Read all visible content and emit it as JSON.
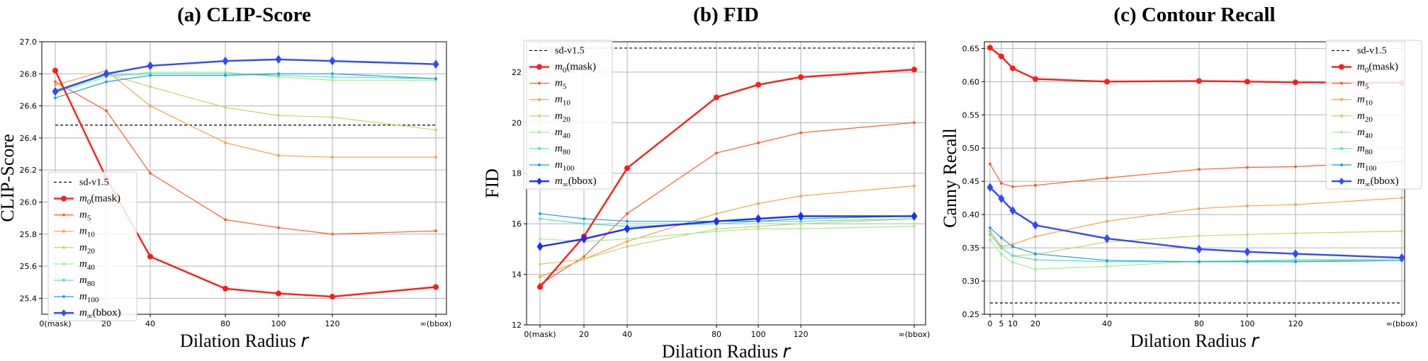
{
  "chart_data": [
    {
      "type": "line",
      "title": "(a)  CLIP-Score",
      "xlabel": "Dilation Radius",
      "xlabel_var": "r",
      "ylabel": "CLIP-Score",
      "x_categories": [
        "0(mask)",
        "20",
        "40",
        "80",
        "100",
        "120",
        "∞(bbox)"
      ],
      "ylim": [
        25.3,
        27.0
      ],
      "yticks": [
        25.4,
        25.6,
        25.8,
        26.0,
        26.2,
        26.4,
        26.6,
        26.8,
        27.0
      ],
      "grid": true,
      "legend_position": "lower-left",
      "baseline": {
        "name": "sd-v1.5",
        "value": 26.48
      },
      "series": [
        {
          "name": "m0(mask)",
          "base": "m",
          "sub": "0",
          "suffix": "(mask)",
          "color": "#ff1a1a",
          "marker": "o",
          "bold": true,
          "values": [
            26.82,
            26.15,
            25.66,
            25.46,
            25.43,
            25.41,
            25.47
          ]
        },
        {
          "name": "m5",
          "base": "m",
          "sub": "5",
          "suffix": "",
          "color": "#f75e2e",
          "marker": "o",
          "bold": false,
          "values": [
            26.75,
            26.57,
            26.18,
            25.89,
            25.84,
            25.8,
            25.82
          ]
        },
        {
          "name": "m10",
          "base": "m",
          "sub": "10",
          "suffix": "",
          "color": "#f6a04a",
          "marker": "o",
          "bold": false,
          "values": [
            26.73,
            26.82,
            26.6,
            26.37,
            26.29,
            26.28,
            26.28
          ]
        },
        {
          "name": "m20",
          "base": "m",
          "sub": "20",
          "suffix": "",
          "color": "#c6d46a",
          "marker": "o",
          "bold": false,
          "values": [
            26.7,
            26.8,
            26.72,
            26.59,
            26.54,
            26.53,
            26.45
          ]
        },
        {
          "name": "m40",
          "base": "m",
          "sub": "40",
          "suffix": "",
          "color": "#9af08a",
          "marker": "o",
          "bold": false,
          "values": [
            26.68,
            26.78,
            26.81,
            26.81,
            26.78,
            26.76,
            26.76
          ]
        },
        {
          "name": "m80",
          "base": "m",
          "sub": "80",
          "suffix": "",
          "color": "#4fe2b6",
          "marker": "o",
          "bold": false,
          "values": [
            26.69,
            26.79,
            26.8,
            26.8,
            26.79,
            26.78,
            26.77
          ]
        },
        {
          "name": "m100",
          "base": "m",
          "sub": "100",
          "suffix": "",
          "color": "#1f9ee8",
          "marker": "o",
          "bold": false,
          "values": [
            26.65,
            26.75,
            26.79,
            26.79,
            26.8,
            26.8,
            26.77
          ]
        },
        {
          "name": "m∞(bbox)",
          "base": "m",
          "sub": "∞",
          "suffix": "(bbox)",
          "color": "#3347ff",
          "marker": "d",
          "bold": true,
          "values": [
            26.69,
            26.8,
            26.85,
            26.88,
            26.89,
            26.88,
            26.86
          ]
        }
      ]
    },
    {
      "type": "line",
      "title": "(b) FID",
      "xlabel": "Dilation Radius",
      "xlabel_var": "r",
      "ylabel": "FID",
      "x_categories": [
        "0(mask)",
        "20",
        "40",
        "80",
        "100",
        "120",
        "∞(bbox)"
      ],
      "ylim": [
        12,
        23.2
      ],
      "yticks": [
        12,
        14,
        16,
        18,
        20,
        22
      ],
      "grid": true,
      "legend_position": "upper-left",
      "baseline": {
        "name": "sd-v1.5",
        "value": 22.95
      },
      "series": [
        {
          "name": "m0(mask)",
          "base": "m",
          "sub": "0",
          "suffix": "(mask)",
          "color": "#ff1a1a",
          "marker": "o",
          "bold": true,
          "values": [
            13.5,
            15.5,
            18.2,
            21.0,
            21.5,
            21.8,
            22.1
          ]
        },
        {
          "name": "m5",
          "base": "m",
          "sub": "5",
          "suffix": "",
          "color": "#f75e2e",
          "marker": "o",
          "bold": false,
          "values": [
            13.6,
            14.7,
            16.4,
            18.8,
            19.2,
            19.6,
            20.0
          ]
        },
        {
          "name": "m10",
          "base": "m",
          "sub": "10",
          "suffix": "",
          "color": "#f6a04a",
          "marker": "o",
          "bold": false,
          "values": [
            13.9,
            14.6,
            15.3,
            16.4,
            16.8,
            17.1,
            17.5
          ]
        },
        {
          "name": "m20",
          "base": "m",
          "sub": "20",
          "suffix": "",
          "color": "#c6d46a",
          "marker": "o",
          "bold": false,
          "values": [
            14.4,
            14.6,
            15.1,
            15.8,
            15.9,
            16.0,
            16.2
          ]
        },
        {
          "name": "m40",
          "base": "m",
          "sub": "40",
          "suffix": "",
          "color": "#9af08a",
          "marker": "o",
          "bold": false,
          "values": [
            15.4,
            15.3,
            15.4,
            15.7,
            15.8,
            15.8,
            15.9
          ]
        },
        {
          "name": "m80",
          "base": "m",
          "sub": "80",
          "suffix": "",
          "color": "#4fe2b6",
          "marker": "o",
          "bold": false,
          "values": [
            16.2,
            16.0,
            15.9,
            16.0,
            16.1,
            16.1,
            16.2
          ]
        },
        {
          "name": "m100",
          "base": "m",
          "sub": "100",
          "suffix": "",
          "color": "#1f9ee8",
          "marker": "o",
          "bold": false,
          "values": [
            16.4,
            16.2,
            16.1,
            16.1,
            16.1,
            16.2,
            16.3
          ]
        },
        {
          "name": "m∞(bbox)",
          "base": "m",
          "sub": "∞",
          "suffix": "(bbox)",
          "color": "#1a2cff",
          "marker": "d",
          "bold": true,
          "values": [
            15.1,
            15.4,
            15.8,
            16.1,
            16.2,
            16.3,
            16.3
          ]
        }
      ]
    },
    {
      "type": "line",
      "title": "(c) Contour Recall",
      "xlabel": "Dilation Radius",
      "xlabel_var": "r",
      "ylabel": "Canny Recall",
      "x_categories": [
        "0",
        "5",
        "10",
        "20",
        "40",
        "80",
        "100",
        "120",
        "∞(bbox)"
      ],
      "ylim": [
        0.25,
        0.66
      ],
      "yticks": [
        0.25,
        0.3,
        0.35,
        0.4,
        0.45,
        0.5,
        0.55,
        0.6,
        0.65
      ],
      "grid": true,
      "legend_position": "upper-right",
      "baseline": {
        "name": "sd-v1.5",
        "value": 0.267
      },
      "series": [
        {
          "name": "m0(mask)",
          "base": "m",
          "sub": "0",
          "suffix": "(mask)",
          "color": "#ff1a1a",
          "marker": "o",
          "bold": true,
          "values": [
            0.651,
            0.638,
            0.62,
            0.604,
            0.6,
            0.601,
            0.6,
            0.599,
            0.598
          ]
        },
        {
          "name": "m5",
          "base": "m",
          "sub": "5",
          "suffix": "",
          "color": "#f75e2e",
          "marker": "o",
          "bold": false,
          "values": [
            0.476,
            0.447,
            0.442,
            0.444,
            0.455,
            0.468,
            0.471,
            0.472,
            0.48
          ]
        },
        {
          "name": "m10",
          "base": "m",
          "sub": "10",
          "suffix": "",
          "color": "#f6a04a",
          "marker": "o",
          "bold": false,
          "values": [
            0.375,
            0.352,
            0.355,
            0.367,
            0.39,
            0.409,
            0.413,
            0.415,
            0.425
          ]
        },
        {
          "name": "m20",
          "base": "m",
          "sub": "20",
          "suffix": "",
          "color": "#c6d46a",
          "marker": "o",
          "bold": false,
          "values": [
            0.37,
            0.35,
            0.338,
            0.34,
            0.359,
            0.368,
            0.37,
            0.372,
            0.375
          ]
        },
        {
          "name": "m40",
          "base": "m",
          "sub": "40",
          "suffix": "",
          "color": "#9af08a",
          "marker": "o",
          "bold": false,
          "values": [
            0.362,
            0.34,
            0.328,
            0.318,
            0.322,
            0.33,
            0.331,
            0.332,
            0.333
          ]
        },
        {
          "name": "m80",
          "base": "m",
          "sub": "80",
          "suffix": "",
          "color": "#4fe2b6",
          "marker": "o",
          "bold": false,
          "values": [
            0.37,
            0.35,
            0.338,
            0.332,
            0.329,
            0.329,
            0.33,
            0.331,
            0.331
          ]
        },
        {
          "name": "m100",
          "base": "m",
          "sub": "100",
          "suffix": "",
          "color": "#1f9ee8",
          "marker": "o",
          "bold": false,
          "values": [
            0.38,
            0.365,
            0.352,
            0.341,
            0.331,
            0.329,
            0.329,
            0.329,
            0.331
          ]
        },
        {
          "name": "m∞(bbox)",
          "base": "m",
          "sub": "∞",
          "suffix": "(bbox)",
          "color": "#3347ff",
          "marker": "d",
          "bold": true,
          "values": [
            0.441,
            0.424,
            0.406,
            0.384,
            0.364,
            0.348,
            0.344,
            0.341,
            0.335
          ]
        }
      ]
    }
  ]
}
